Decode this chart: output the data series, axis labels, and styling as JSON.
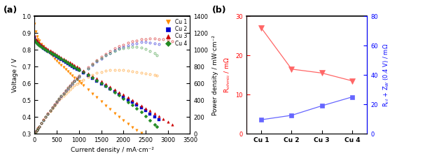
{
  "panel_a": {
    "polarization": {
      "Cu1": {
        "color": "#FF8C00",
        "marker": "v",
        "cd": [
          0,
          25,
          50,
          75,
          100,
          150,
          200,
          250,
          300,
          350,
          400,
          450,
          500,
          550,
          600,
          650,
          700,
          750,
          800,
          850,
          900,
          950,
          1000,
          1050,
          1100,
          1200,
          1300,
          1400,
          1500,
          1600,
          1700,
          1800,
          1900,
          2000,
          2100,
          2200,
          2300,
          2400,
          2500,
          2600,
          2700,
          2750
        ],
        "v": [
          0.955,
          0.91,
          0.88,
          0.865,
          0.855,
          0.835,
          0.82,
          0.805,
          0.79,
          0.775,
          0.762,
          0.748,
          0.735,
          0.722,
          0.71,
          0.697,
          0.684,
          0.672,
          0.66,
          0.648,
          0.636,
          0.624,
          0.612,
          0.6,
          0.588,
          0.565,
          0.54,
          0.516,
          0.492,
          0.468,
          0.445,
          0.422,
          0.4,
          0.378,
          0.358,
          0.338,
          0.32,
          0.303,
          0.287,
          0.273,
          0.26,
          0.253
        ]
      },
      "Cu2": {
        "color": "#0000CD",
        "marker": "s",
        "cd": [
          0,
          25,
          50,
          75,
          100,
          150,
          200,
          250,
          300,
          350,
          400,
          450,
          500,
          550,
          600,
          650,
          700,
          750,
          800,
          850,
          900,
          950,
          1000,
          1100,
          1200,
          1300,
          1400,
          1500,
          1600,
          1700,
          1800,
          1900,
          2000,
          2100,
          2200,
          2300,
          2400,
          2500,
          2600,
          2700,
          2800
        ],
        "v": [
          0.875,
          0.855,
          0.845,
          0.838,
          0.832,
          0.82,
          0.81,
          0.8,
          0.792,
          0.783,
          0.774,
          0.766,
          0.758,
          0.75,
          0.742,
          0.734,
          0.726,
          0.718,
          0.71,
          0.702,
          0.694,
          0.686,
          0.678,
          0.662,
          0.646,
          0.63,
          0.614,
          0.598,
          0.582,
          0.566,
          0.55,
          0.534,
          0.518,
          0.502,
          0.486,
          0.47,
          0.454,
          0.436,
          0.418,
          0.4,
          0.382
        ]
      },
      "Cu3": {
        "color": "#CC0000",
        "marker": "^",
        "cd": [
          0,
          25,
          50,
          75,
          100,
          150,
          200,
          250,
          300,
          350,
          400,
          450,
          500,
          550,
          600,
          650,
          700,
          750,
          800,
          850,
          900,
          950,
          1000,
          1100,
          1200,
          1300,
          1400,
          1500,
          1600,
          1700,
          1800,
          1900,
          2000,
          2100,
          2200,
          2300,
          2400,
          2500,
          2600,
          2700,
          2800,
          2900,
          3000,
          3100
        ],
        "v": [
          0.885,
          0.865,
          0.855,
          0.848,
          0.842,
          0.83,
          0.82,
          0.812,
          0.804,
          0.796,
          0.788,
          0.78,
          0.772,
          0.764,
          0.756,
          0.748,
          0.74,
          0.732,
          0.724,
          0.716,
          0.708,
          0.7,
          0.692,
          0.676,
          0.66,
          0.644,
          0.628,
          0.612,
          0.596,
          0.58,
          0.564,
          0.548,
          0.532,
          0.516,
          0.5,
          0.484,
          0.468,
          0.452,
          0.436,
          0.42,
          0.404,
          0.388,
          0.372,
          0.356
        ]
      },
      "Cu4": {
        "color": "#228B22",
        "marker": "D",
        "cd": [
          0,
          25,
          50,
          75,
          100,
          150,
          200,
          250,
          300,
          350,
          400,
          450,
          500,
          550,
          600,
          650,
          700,
          750,
          800,
          850,
          900,
          950,
          1000,
          1100,
          1200,
          1300,
          1400,
          1500,
          1600,
          1700,
          1800,
          1900,
          2000,
          2100,
          2200,
          2300,
          2400,
          2500,
          2600,
          2700,
          2750
        ],
        "v": [
          0.86,
          0.848,
          0.84,
          0.834,
          0.828,
          0.818,
          0.81,
          0.802,
          0.794,
          0.786,
          0.778,
          0.77,
          0.762,
          0.754,
          0.746,
          0.738,
          0.73,
          0.722,
          0.714,
          0.706,
          0.698,
          0.69,
          0.682,
          0.666,
          0.65,
          0.634,
          0.618,
          0.602,
          0.584,
          0.566,
          0.548,
          0.53,
          0.51,
          0.49,
          0.47,
          0.45,
          0.428,
          0.405,
          0.38,
          0.355,
          0.34
        ]
      }
    },
    "xlabel": "Current density / mA·cm⁻²",
    "ylabel_left": "Voltage / V",
    "ylabel_right": "Power density / mW·cm⁻²",
    "xlim": [
      0,
      3500
    ],
    "ylim_left": [
      0.3,
      1.0
    ],
    "ylim_right": [
      0,
      1400
    ],
    "legend_labels": [
      "Cu 1",
      "Cu 2",
      "Cu 3",
      "Cu 4"
    ],
    "legend_colors": [
      "#FF8C00",
      "#0000CD",
      "#CC0000",
      "#228B22"
    ],
    "legend_markers": [
      "v",
      "s",
      "^",
      "D"
    ]
  },
  "panel_b": {
    "categories": [
      "Cu 1",
      "Cu 2",
      "Cu 3",
      "Cu 4"
    ],
    "red_data": [
      27.0,
      16.5,
      15.5,
      13.5
    ],
    "blue_data": [
      9.5,
      12.5,
      19.0,
      25.0
    ],
    "red_color": "#FF6666",
    "blue_color": "#6666FF",
    "red_marker": "v",
    "blue_marker": "s",
    "ylabel_left": "R$_{ohmic}$ / mΩ",
    "ylabel_right": "R$_{ct}$ + Z$_{W}$ (0.4 V) / mΩ",
    "ylim_left": [
      0,
      30
    ],
    "ylim_right": [
      0,
      80
    ],
    "left_axis_color": "#FF0000",
    "right_axis_color": "#0000FF"
  }
}
